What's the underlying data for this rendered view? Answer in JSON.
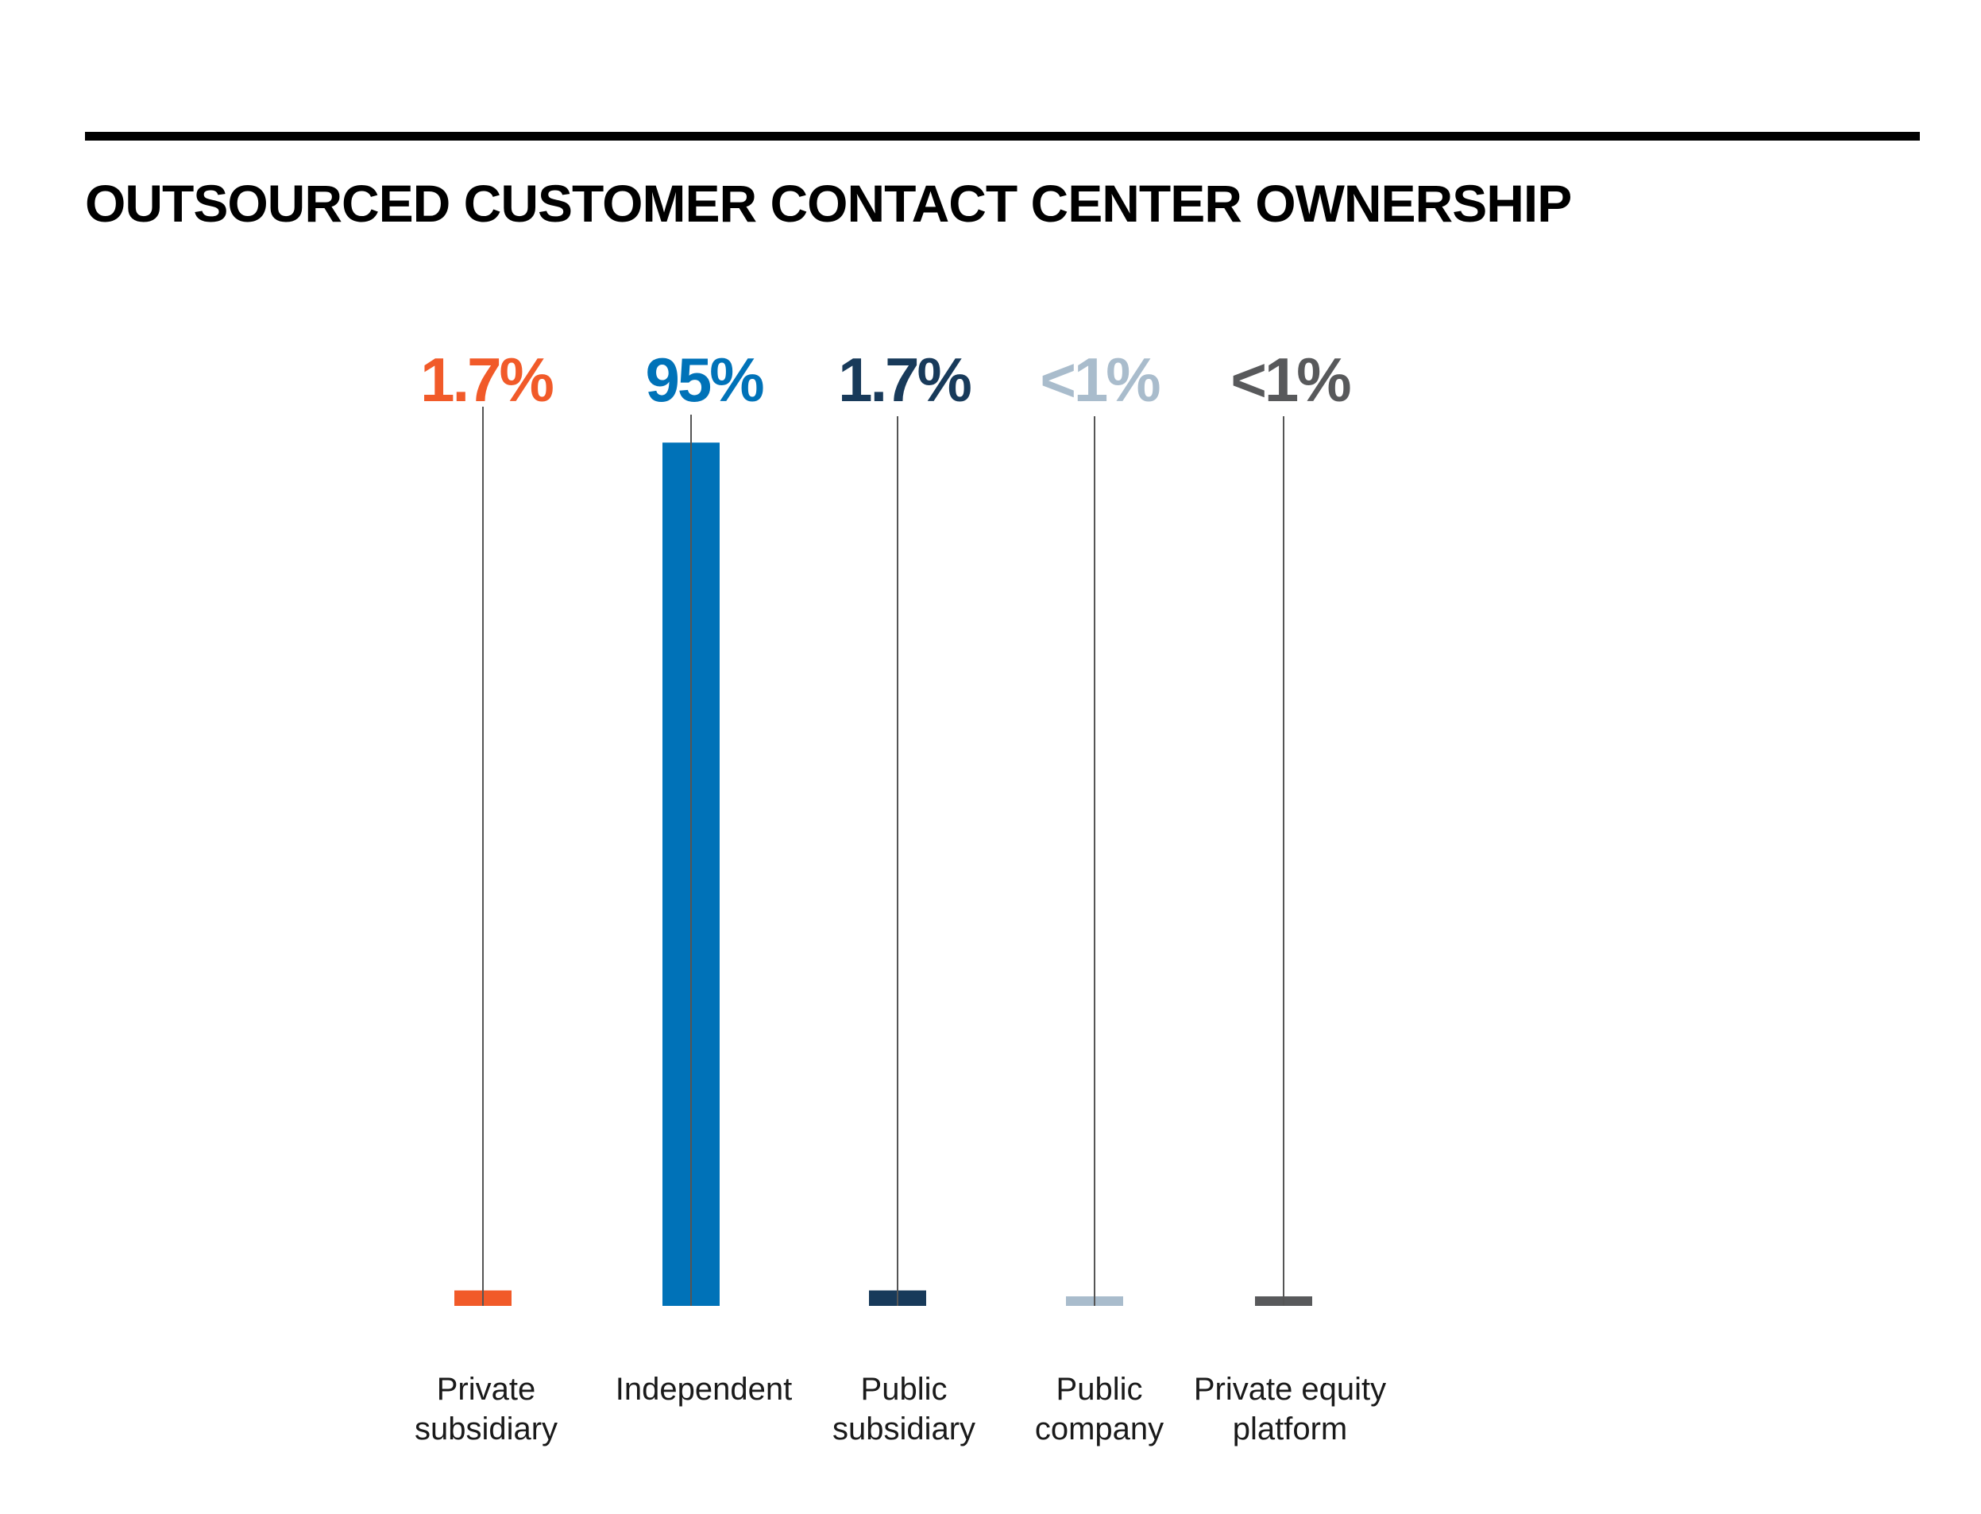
{
  "title": "OUTSOURCED CUSTOMER CONTACT CENTER OWNERSHIP",
  "chart_data": {
    "type": "bar",
    "title": "OUTSOURCED CUSTOMER CONTACT CENTER OWNERSHIP",
    "categories": [
      [
        "Private",
        "subsidiary"
      ],
      [
        "Independent"
      ],
      [
        "Public",
        "subsidiary"
      ],
      [
        "Public",
        "company"
      ],
      [
        "Private equity",
        "platform"
      ]
    ],
    "values": [
      1.7,
      95,
      1.7,
      0.5,
      0.5
    ],
    "value_labels": [
      "1.7%",
      "95%",
      "1.7%",
      "<1%",
      "<1%"
    ],
    "colors": [
      "#f15a29",
      "#0072b8",
      "#183a5a",
      "#a9bccc",
      "#58595b"
    ],
    "ylim": [
      0,
      100
    ],
    "grid": false,
    "legend": "none"
  }
}
